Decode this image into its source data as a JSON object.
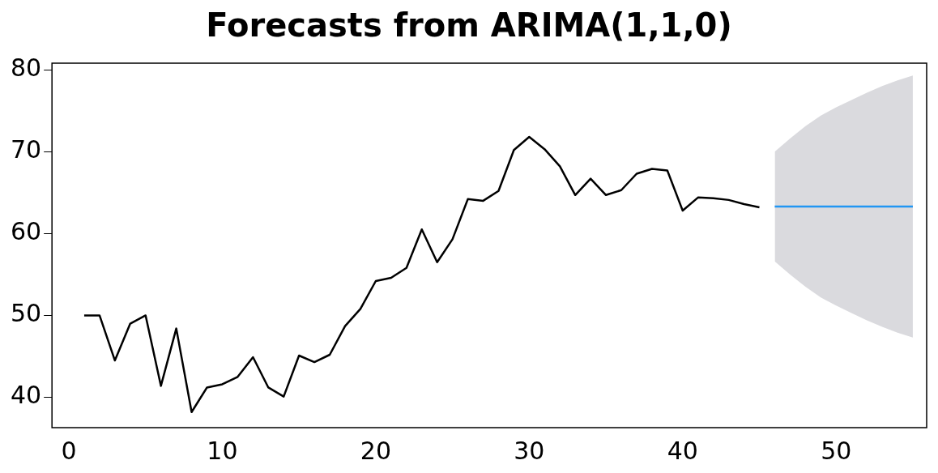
{
  "chart_data": {
    "type": "line",
    "title": "Forecasts from ARIMA(1,1,0)",
    "xlim": [
      -1.1,
      55.9
    ],
    "ylim": [
      36.3,
      80.8
    ],
    "xticks": [
      0,
      10,
      20,
      30,
      40,
      50
    ],
    "yticks": [
      40,
      50,
      60,
      70,
      80
    ],
    "grid": false,
    "legend": false,
    "marker": "none",
    "line_style": "solid",
    "series": [
      {
        "color": "#000000",
        "x": [
          1,
          2,
          3,
          4,
          5,
          6,
          7,
          8,
          9,
          10,
          11,
          12,
          13,
          14,
          15,
          16,
          17,
          18,
          19,
          20,
          21,
          22,
          23,
          24,
          25,
          26,
          27,
          28,
          29,
          30,
          31,
          32,
          33,
          34,
          35,
          36,
          37,
          38,
          39,
          40,
          41,
          42,
          43,
          44,
          45
        ],
        "values": [
          50,
          50,
          44.5,
          49,
          50,
          41.4,
          48.4,
          38.2,
          41.2,
          41.6,
          42.5,
          44.9,
          41.2,
          40.1,
          45.1,
          44.3,
          45.2,
          48.7,
          50.8,
          54.2,
          54.6,
          55.8,
          60.5,
          56.5,
          59.3,
          64.2,
          64,
          65.2,
          70.2,
          71.8,
          70.3,
          68.2,
          64.7,
          66.7,
          64.7,
          65.3,
          67.3,
          67.9,
          67.7,
          62.8,
          64.4,
          64.3,
          64.1,
          63.6,
          63.2
        ]
      },
      {
        "color": "#2196f3",
        "x": [
          46,
          47,
          48,
          49,
          50,
          51,
          52,
          53,
          54,
          55
        ],
        "values": [
          63.3,
          63.3,
          63.3,
          63.3,
          63.3,
          63.3,
          63.3,
          63.3,
          63.3,
          63.3
        ],
        "lower": [
          56.6,
          55,
          53.5,
          52.2,
          51.2,
          50.3,
          49.4,
          48.6,
          47.9,
          47.3
        ],
        "upper": [
          70,
          71.6,
          73.1,
          74.4,
          75.4,
          76.3,
          77.2,
          78,
          78.7,
          79.3
        ]
      }
    ]
  }
}
